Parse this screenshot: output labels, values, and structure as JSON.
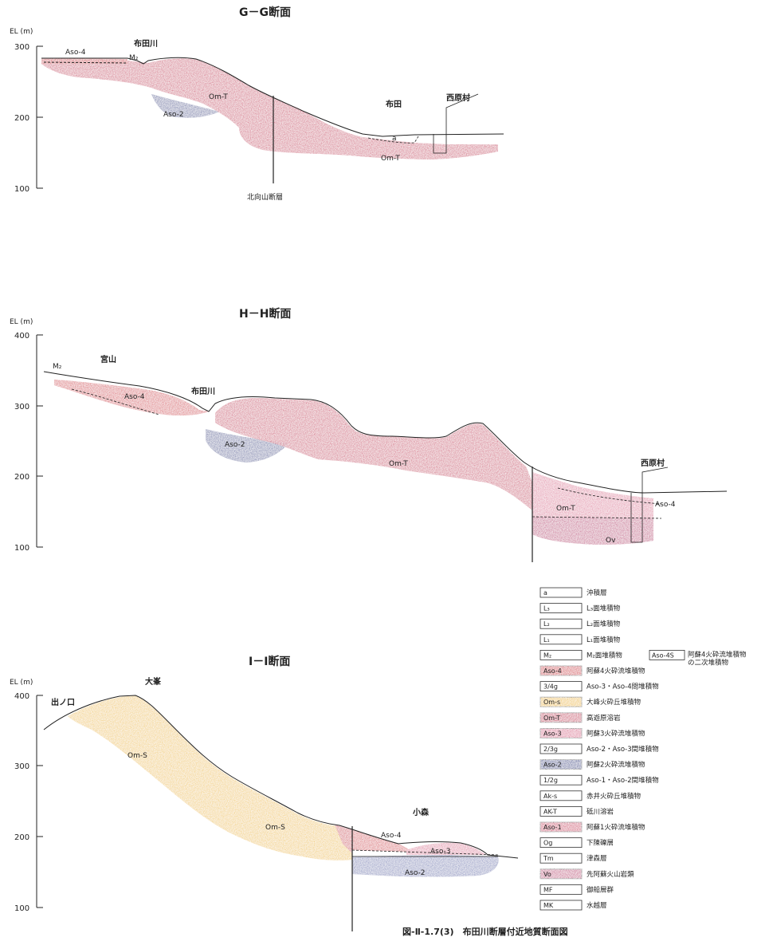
{
  "colors": {
    "aso4": "#d8394a",
    "omt": "#cf3a66",
    "aso3": "#df6f96",
    "aso2": "#3e4d99",
    "oms": "#f0c43a",
    "aso1": "#d43f6e",
    "vo": "#c94f86",
    "line": "#222222"
  },
  "sections": [
    {
      "title": "G－G断面",
      "axis_label": "EL (m)",
      "ticks": [
        "300",
        "200",
        "100"
      ],
      "places": [
        "布田川",
        "布田",
        "西原村"
      ],
      "units": [
        "Aso-4",
        "M₂",
        "Om-T",
        "Aso-2",
        "a",
        "Om-T"
      ],
      "fault": "北向山断層"
    },
    {
      "title": "H－H断面",
      "axis_label": "EL (m)",
      "ticks": [
        "400",
        "300",
        "200",
        "100"
      ],
      "places": [
        "宮山",
        "布田川",
        "西原村"
      ],
      "units": [
        "M₂",
        "Aso-4",
        "Aso-2",
        "Om-T",
        "Om-T",
        "Aso-4",
        "Ov"
      ]
    },
    {
      "title": "I－I断面",
      "axis_label": "EL (m)",
      "ticks": [
        "400",
        "300",
        "200",
        "100"
      ],
      "places": [
        "大峯",
        "出ノ口",
        "小森"
      ],
      "units": [
        "Om-S",
        "Om-S",
        "Aso-4",
        "Aso-3",
        "Aso-2"
      ]
    }
  ],
  "legend": [
    {
      "code": "a",
      "desc": "沖積層",
      "color": ""
    },
    {
      "code": "L₃",
      "desc": "L₃面堆積物",
      "color": ""
    },
    {
      "code": "L₂",
      "desc": "L₂面堆積物",
      "color": ""
    },
    {
      "code": "L₁",
      "desc": "L₁面堆積物",
      "color": ""
    },
    {
      "code": "M₂",
      "desc": "M₂面堆積物",
      "color": ""
    },
    {
      "code": "Aso-4",
      "desc": "阿蘇4火砕流堆積物",
      "color": "#d8394a"
    },
    {
      "code": "3/4g",
      "desc": "Aso-3・Aso-4間堆積物",
      "color": ""
    },
    {
      "code": "Om-s",
      "desc": "大峰火砕丘堆積物",
      "color": "#f0c43a"
    },
    {
      "code": "Om-T",
      "desc": "高遊原溶岩",
      "color": "#cf3a66"
    },
    {
      "code": "Aso-3",
      "desc": "阿蘇3火砕流堆積物",
      "color": "#df6f96"
    },
    {
      "code": "2/3g",
      "desc": "Aso-2・Aso-3間堆積物",
      "color": ""
    },
    {
      "code": "Aso-2",
      "desc": "阿蘇2火砕流堆積物",
      "color": "#3e4d99"
    },
    {
      "code": "1/2g",
      "desc": "Aso-1・Aso-2間堆積物",
      "color": ""
    },
    {
      "code": "Ak-s",
      "desc": "赤井火砕丘堆積物",
      "color": ""
    },
    {
      "code": "AK-T",
      "desc": "砥川溶岩",
      "color": ""
    },
    {
      "code": "Aso-1",
      "desc": "阿蘇1火砕流堆積物",
      "color": "#d43f6e"
    },
    {
      "code": "Og",
      "desc": "下陳礫層",
      "color": ""
    },
    {
      "code": "Tm",
      "desc": "津森層",
      "color": ""
    },
    {
      "code": "Vo",
      "desc": "先阿蘇火山岩類",
      "color": "#c94f86"
    },
    {
      "code": "MF",
      "desc": "御船層群",
      "color": ""
    },
    {
      "code": "MK",
      "desc": "水越層",
      "color": ""
    }
  ],
  "legend_extra": {
    "code": "Aso-4S",
    "desc_line1": "阿蘇4火砕流堆積物",
    "desc_line2": "の二次堆積物"
  },
  "caption": "図-Ⅱ-1.7(3)　布田川断層付近地質断面図"
}
